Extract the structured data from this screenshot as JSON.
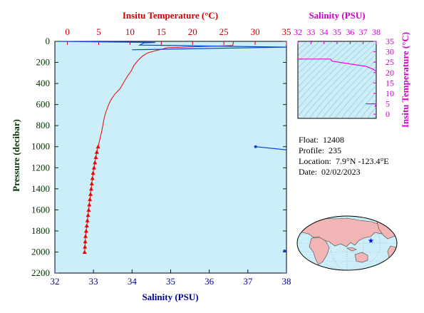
{
  "chart_data": [
    {
      "type": "line",
      "name": "main-profile",
      "top_axis": {
        "label": "Insitu Temperature (°C)",
        "range": [
          -2,
          35
        ],
        "ticks": [
          0,
          5,
          10,
          15,
          20,
          25,
          30,
          35
        ],
        "color": "#cc0000"
      },
      "bottom_axis": {
        "label": "Salinity (PSU)",
        "range": [
          32,
          38
        ],
        "ticks": [
          32,
          33,
          34,
          35,
          36,
          37,
          38
        ],
        "color": "#000099"
      },
      "left_axis": {
        "label": "Pressure (decibar)",
        "range": [
          0,
          2200
        ],
        "inverted": true,
        "ticks": [
          0,
          200,
          400,
          600,
          800,
          1000,
          1200,
          1400,
          1600,
          1800,
          2000,
          2200
        ],
        "color": "#003300"
      },
      "background": "#cceef8",
      "temperature_series": {
        "color": "#ee0000",
        "points": [
          [
            26.5,
            0
          ],
          [
            26.5,
            20
          ],
          [
            26.4,
            40
          ],
          [
            16,
            60
          ],
          [
            14.3,
            85
          ],
          [
            12.8,
            110
          ],
          [
            12.0,
            140
          ],
          [
            11.3,
            180
          ],
          [
            10.6,
            230
          ],
          [
            10.2,
            280
          ],
          [
            9.6,
            330
          ],
          [
            8.9,
            400
          ],
          [
            8.4,
            450
          ],
          [
            7.6,
            500
          ],
          [
            7.0,
            550
          ],
          [
            6.6,
            600
          ],
          [
            6.1,
            680
          ],
          [
            5.8,
            750
          ],
          [
            5.5,
            850
          ],
          [
            5.1,
            950
          ],
          [
            4.9,
            1000
          ]
        ],
        "marker_points": [
          [
            4.9,
            1000
          ],
          [
            4.7,
            1050
          ],
          [
            4.55,
            1100
          ],
          [
            4.4,
            1150
          ],
          [
            4.25,
            1200
          ],
          [
            4.1,
            1250
          ],
          [
            4.0,
            1300
          ],
          [
            3.9,
            1350
          ],
          [
            3.8,
            1400
          ],
          [
            3.7,
            1450
          ],
          [
            3.6,
            1500
          ],
          [
            3.5,
            1550
          ],
          [
            3.4,
            1600
          ],
          [
            3.3,
            1650
          ],
          [
            3.2,
            1700
          ],
          [
            3.1,
            1750
          ],
          [
            3.0,
            1800
          ],
          [
            2.9,
            1850
          ],
          [
            2.85,
            1900
          ],
          [
            2.8,
            1950
          ],
          [
            2.75,
            2000
          ]
        ]
      },
      "salinity_series": {
        "color": "#0044dd",
        "segments": [
          [
            [
              32.1,
              0
            ],
            [
              34.6,
              10
            ],
            [
              34.3,
              15
            ],
            [
              34.2,
              35
            ],
            [
              38.0,
              55
            ],
            [
              34.0,
              80
            ]
          ],
          [
            [
              37.2,
              1000
            ],
            [
              38.0,
              1030
            ]
          ],
          [
            [
              37.95,
              1990
            ],
            [
              38.0,
              2000
            ]
          ]
        ],
        "dots": [
          [
            37.2,
            1000
          ],
          [
            37.95,
            1990
          ]
        ]
      }
    },
    {
      "type": "line",
      "name": "ts-diagram",
      "top_axis": {
        "label": "Salinity (PSU)",
        "range": [
          32,
          38
        ],
        "ticks": [
          32,
          33,
          34,
          35,
          36,
          37,
          38
        ],
        "color": "#cc00cc"
      },
      "right_axis": {
        "label": "Insitu Temperature (°C)",
        "range": [
          -2,
          35
        ],
        "ticks": [
          0,
          5,
          10,
          15,
          20,
          25,
          30,
          35
        ],
        "color": "#cc00cc"
      },
      "background": "#cceef8",
      "series": {
        "color": "#ee00ee",
        "points": [
          [
            32.0,
            26.5
          ],
          [
            34.5,
            26.5
          ],
          [
            34.6,
            25.5
          ],
          [
            37.2,
            23.0
          ],
          [
            37.8,
            21.5
          ],
          [
            38.0,
            20.5
          ]
        ],
        "tail": [
          [
            37.2,
            5.0
          ],
          [
            38.0,
            5.0
          ],
          [
            37.9,
            3.5
          ]
        ]
      }
    }
  ],
  "info": {
    "float_label": "Float:",
    "float_value": "12408",
    "profile_label": "Profile:",
    "profile_value": "235",
    "location_label": "Location:",
    "location_value": "7.9°N  -123.4°E",
    "date_label": "Date:",
    "date_value": "02/02/2023"
  },
  "map": {
    "land_color": "#f2b5b5",
    "ocean_color": "#cceef8",
    "marker_color": "#0000ee",
    "marker_lat": 7.9,
    "marker_lon": -123.4
  }
}
